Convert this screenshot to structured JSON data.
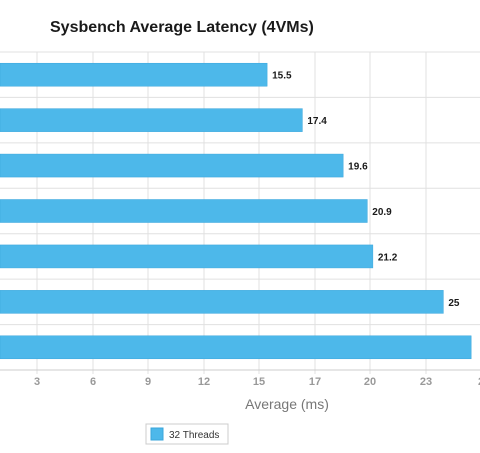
{
  "colors": {
    "bar": "#4db8ea",
    "bar_stroke": "#3aa6db",
    "grid": "#e0e0e0",
    "background": "#ffffff"
  },
  "chart_data": {
    "type": "bar",
    "orientation": "horizontal",
    "title": "Sysbench Average Latency (4VMs)",
    "xlabel": "Average (ms)",
    "ylabel": "",
    "xlim": [
      0,
      26
    ],
    "x_ticks": [
      "3",
      "6",
      "9",
      "12",
      "15",
      "17",
      "20",
      "23",
      "2"
    ],
    "grid": true,
    "legend_position": "bottom",
    "categories": [
      "",
      "",
      "",
      "",
      "",
      "",
      ""
    ],
    "series": [
      {
        "name": "32 Threads",
        "values": [
          15.5,
          17.4,
          19.6,
          20.9,
          21.2,
          25,
          26.5
        ],
        "labels": [
          "15.5",
          "17.4",
          "19.6",
          "20.9",
          "21.2",
          "25",
          ""
        ]
      }
    ]
  }
}
